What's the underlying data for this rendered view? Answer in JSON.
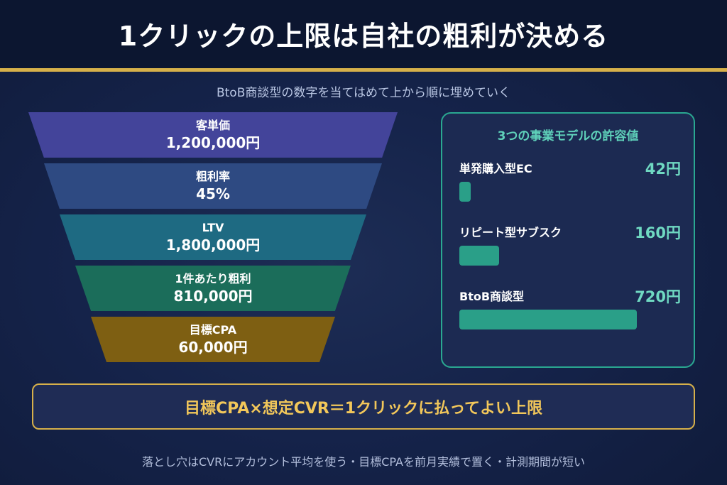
{
  "title": "1クリックの上限は自社の粗利が決める",
  "subtitle": "BtoB商談型の数字を当てはめて上から順に埋めていく",
  "funnel": [
    {
      "label": "客単価",
      "value": "1,200,000円"
    },
    {
      "label": "粗利率",
      "value": "45%"
    },
    {
      "label": "LTV",
      "value": "1,800,000円"
    },
    {
      "label": "1件あたり粗利",
      "value": "810,000円"
    },
    {
      "label": "目標CPA",
      "value": "60,000円"
    }
  ],
  "panel": {
    "title": "3つの事業モデルの許容値",
    "models": [
      {
        "name": "単発購入型EC",
        "amount": "42円",
        "yen": 42
      },
      {
        "name": "リピート型サブスク",
        "amount": "160円",
        "yen": 160
      },
      {
        "name": "BtoB商談型",
        "amount": "720円",
        "yen": 720
      }
    ]
  },
  "formula": "目標CPA×想定CVR＝1クリックに払ってよい上限",
  "footer": "落とし穴はCVRにアカウント平均を使う・目標CPAを前月実績で置く・計測期間が短い",
  "colors": {
    "accent_gold": "#d6b04a",
    "accent_teal": "#2aa891",
    "funnel": [
      "#43449a",
      "#2e4a82",
      "#1e6a82",
      "#1b6d5a",
      "#7e5f12"
    ]
  }
}
